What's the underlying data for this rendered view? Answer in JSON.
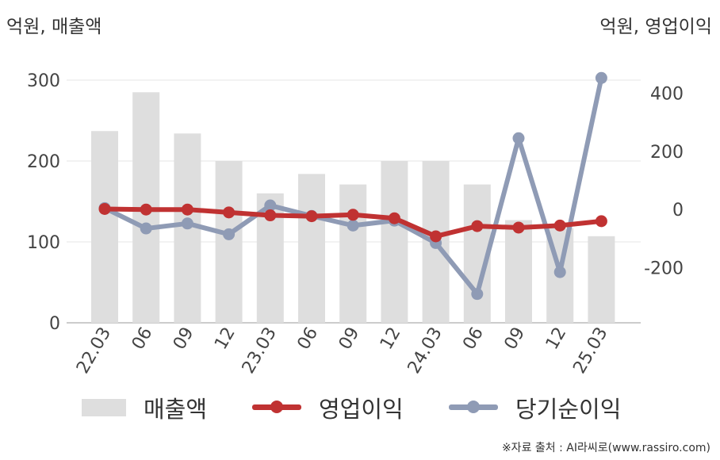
{
  "units": {
    "left": "억원, 매출액",
    "right": "억원, 영업이익"
  },
  "source": "※자료 출처 : AI라씨로(www.rassiro.com)",
  "chart_data": {
    "type": "bar+line",
    "categories": [
      "22.03",
      "06",
      "09",
      "12",
      "23.03",
      "06",
      "09",
      "12",
      "24.03",
      "06",
      "09",
      "12",
      "25.03"
    ],
    "left_axis": {
      "label": "억원, 매출액",
      "ticks": [
        0,
        100,
        200,
        300
      ],
      "lim": [
        0,
        300
      ]
    },
    "right_axis": {
      "label": "억원, 영업이익",
      "ticks": [
        -200,
        0,
        200,
        400
      ],
      "lim": [
        -340,
        450
      ]
    },
    "grid": true,
    "legend_position": "bottom",
    "series": [
      {
        "name": "매출액",
        "type": "bar",
        "axis": "left",
        "color": "#dedede",
        "values": [
          237,
          285,
          234,
          200,
          160,
          184,
          171,
          200,
          200,
          171,
          127,
          117,
          107
        ]
      },
      {
        "name": "영업이익",
        "type": "line",
        "axis": "right",
        "color": "#c03232",
        "values": [
          2,
          0,
          0,
          -10,
          -20,
          -23,
          -18,
          -30,
          -92,
          -57,
          -62,
          -55,
          -40
        ]
      },
      {
        "name": "당기순이익",
        "type": "line",
        "axis": "right",
        "color": "#8f9bb5",
        "values": [
          5,
          -65,
          -48,
          -85,
          14,
          -22,
          -55,
          -38,
          -115,
          -290,
          245,
          -215,
          452
        ]
      }
    ]
  }
}
